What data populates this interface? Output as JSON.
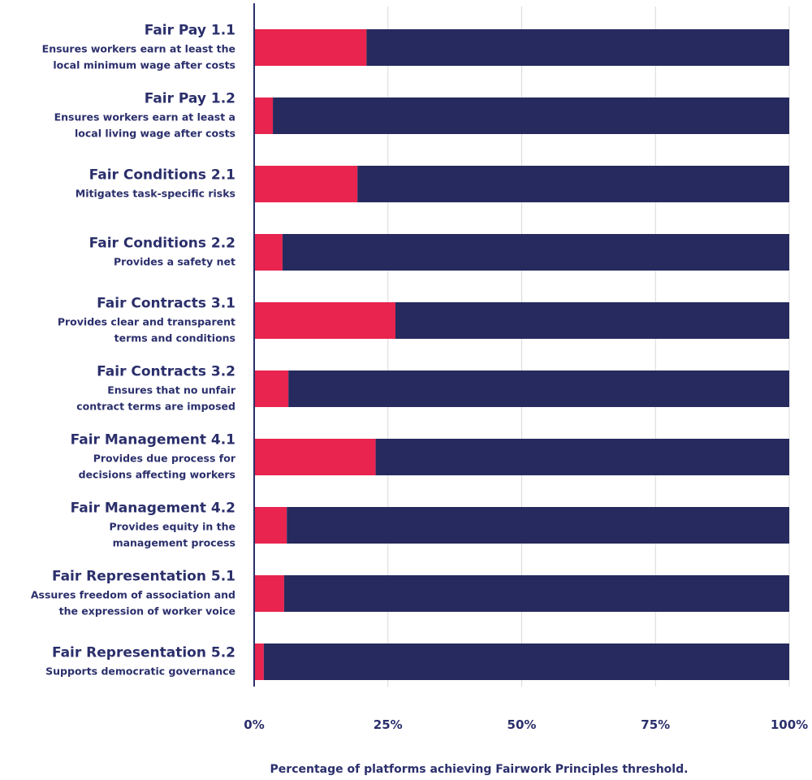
{
  "chart_data": {
    "type": "bar",
    "orientation": "horizontal",
    "stacked": true,
    "categories": [
      {
        "title": "Fair Pay 1.1",
        "description": [
          "Ensures workers earn at least the",
          "local minimum wage after costs"
        ]
      },
      {
        "title": "Fair Pay 1.2",
        "description": [
          "Ensures workers earn at least a",
          "local living wage after costs"
        ]
      },
      {
        "title": "Fair Conditions 2.1",
        "description": [
          "Mitigates task-specific risks"
        ]
      },
      {
        "title": "Fair Conditions 2.2",
        "description": [
          "Provides a safety net"
        ]
      },
      {
        "title": "Fair Contracts 3.1",
        "description": [
          "Provides clear and transparent",
          "terms and conditions"
        ]
      },
      {
        "title": "Fair Contracts 3.2",
        "description": [
          "Ensures that no unfair",
          "contract terms are imposed"
        ]
      },
      {
        "title": "Fair Management 4.1",
        "description": [
          "Provides due process for",
          "decisions affecting workers"
        ]
      },
      {
        "title": "Fair Management 4.2",
        "description": [
          "Provides equity in the",
          "management process"
        ]
      },
      {
        "title": "Fair Representation 5.1",
        "description": [
          "Assures freedom of association and",
          "the expression of worker voice"
        ]
      },
      {
        "title": "Fair Representation 5.2",
        "description": [
          "Supports democratic governance"
        ]
      }
    ],
    "series": [
      {
        "color": "#e8244f",
        "values": [
          21,
          3.5,
          19.3,
          5.3,
          26.4,
          6.4,
          22.7,
          6.1,
          5.6,
          1.8
        ]
      },
      {
        "color": "#262a5e",
        "values": [
          79,
          96.5,
          80.7,
          94.7,
          73.6,
          93.6,
          77.3,
          93.9,
          94.4,
          98.2
        ]
      }
    ],
    "xticks": [
      "0%",
      "25%",
      "50%",
      "75%",
      "100%"
    ],
    "xlim": [
      0,
      100
    ],
    "xlabel": "Percentage of platforms achieving Fairwork Principles threshold.",
    "grid": true,
    "legend": "none"
  }
}
